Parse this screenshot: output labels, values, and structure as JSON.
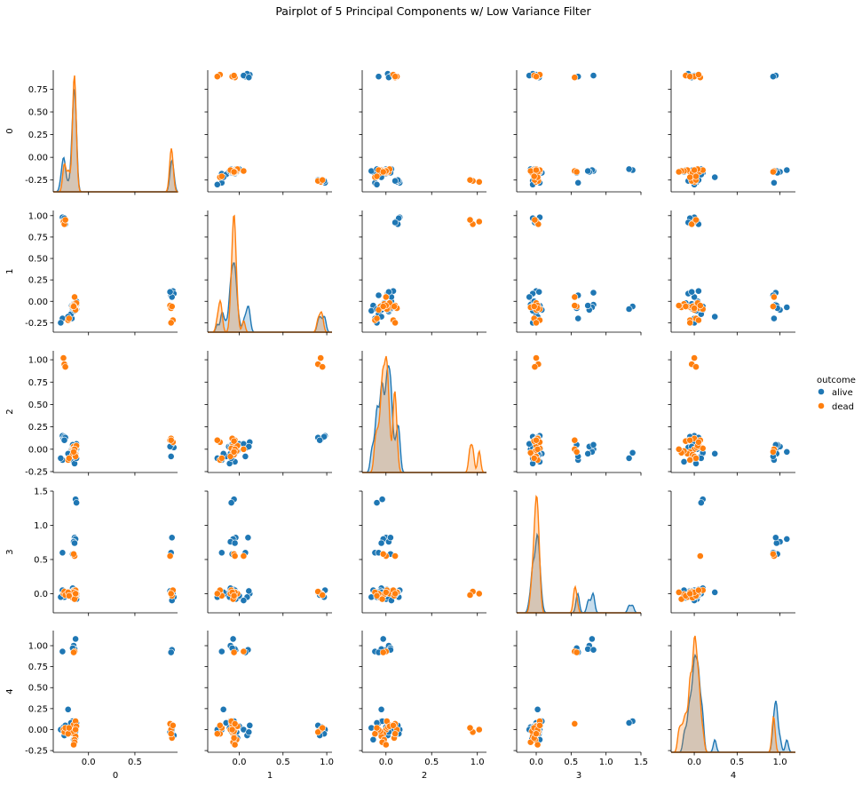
{
  "chart_data": {
    "type": "scatter",
    "title": "Pairplot of 5 Principal Components w/ Low Variance Filter",
    "variables": [
      "0",
      "1",
      "2",
      "3",
      "4"
    ],
    "diag_kind": "kde",
    "axes": [
      {
        "name": "0",
        "lim": [
          -0.38,
          0.96
        ],
        "ticks": [
          -0.25,
          0.0,
          0.25,
          0.5,
          0.75
        ],
        "tick_labels": [
          "-0.25",
          "0.00",
          "0.25",
          "0.50",
          "0.75"
        ],
        "x_tick_labels": [
          "0.0",
          "0.5"
        ],
        "x_ticks": [
          0.0,
          0.5
        ]
      },
      {
        "name": "1",
        "lim": [
          -0.36,
          1.06
        ],
        "ticks": [
          -0.25,
          0.0,
          0.25,
          0.5,
          0.75,
          1.0
        ],
        "tick_labels": [
          "-0.25",
          "0.00",
          "0.25",
          "0.50",
          "0.75",
          "1.00"
        ],
        "x_tick_labels": [
          "0.0",
          "0.5",
          "1.0"
        ],
        "x_ticks": [
          0.0,
          0.5,
          1.0
        ]
      },
      {
        "name": "2",
        "lim": [
          -0.26,
          1.1
        ],
        "ticks": [
          -0.25,
          0.0,
          0.25,
          0.5,
          0.75,
          1.0
        ],
        "tick_labels": [
          "-0.25",
          "0.00",
          "0.25",
          "0.50",
          "0.75",
          "1.00"
        ],
        "x_tick_labels": [
          "0.0",
          "0.5",
          "1.0"
        ],
        "x_ticks": [
          0.0,
          0.5,
          1.0
        ]
      },
      {
        "name": "3",
        "lim": [
          -0.28,
          1.5
        ],
        "ticks": [
          0.0,
          0.5,
          1.0,
          1.5
        ],
        "tick_labels": [
          "0.0",
          "0.5",
          "1.0",
          "1.5"
        ],
        "x_tick_labels": [
          "0.0",
          "0.5",
          "1.0",
          "1.5"
        ],
        "x_ticks": [
          0.0,
          0.5,
          1.0,
          1.5
        ]
      },
      {
        "name": "4",
        "lim": [
          -0.27,
          1.18
        ],
        "ticks": [
          -0.25,
          0.0,
          0.25,
          0.5,
          0.75,
          1.0
        ],
        "tick_labels": [
          "-0.25",
          "0.00",
          "0.25",
          "0.50",
          "0.75",
          "1.00"
        ],
        "x_tick_labels": [
          "0.0",
          "0.5",
          "1.0"
        ],
        "x_ticks": [
          0.0,
          0.5,
          1.0
        ]
      }
    ],
    "legend": {
      "title": "outcome",
      "placement": "center-right",
      "entries": [
        {
          "name": "alive",
          "color": "#1f77b4"
        },
        {
          "name": "dead",
          "color": "#ff7f0e"
        }
      ]
    },
    "series": [
      {
        "name": "alive",
        "color": "#1f77b4",
        "points": [
          [
            -0.28,
            0.98,
            0.15,
            0.05,
            0.0
          ],
          [
            -0.27,
            0.94,
            0.12,
            0.0,
            0.03
          ],
          [
            -0.26,
            0.97,
            0.14,
            -0.05,
            -0.05
          ],
          [
            -0.25,
            0.9,
            0.13,
            0.02,
            0.05
          ],
          [
            -0.26,
            0.92,
            0.1,
            -0.02,
            -0.07
          ],
          [
            -0.18,
            -0.05,
            0.0,
            0.0,
            0.0
          ],
          [
            -0.17,
            -0.08,
            0.02,
            0.03,
            0.02
          ],
          [
            -0.16,
            -0.03,
            -0.03,
            -0.02,
            -0.03
          ],
          [
            -0.15,
            -0.06,
            0.01,
            0.06,
            0.05
          ],
          [
            -0.17,
            -0.1,
            -0.05,
            0.08,
            0.1
          ],
          [
            -0.14,
            -0.02,
            -0.02,
            -0.06,
            -0.1
          ],
          [
            -0.16,
            -0.12,
            0.03,
            0.01,
            0.06
          ],
          [
            -0.15,
            -0.07,
            -0.06,
            0.04,
            -0.05
          ],
          [
            -0.18,
            -0.2,
            -0.1,
            0.02,
            0.0
          ],
          [
            -0.13,
            -0.04,
            0.0,
            -0.08,
            0.03
          ],
          [
            -0.14,
            -0.09,
            0.05,
            0.02,
            -0.02
          ],
          [
            -0.19,
            -0.15,
            -0.08,
            0.0,
            0.08
          ],
          [
            -0.13,
            0.0,
            0.06,
            -0.03,
            0.04
          ],
          [
            -0.16,
            -0.05,
            -0.14,
            0.05,
            -0.12
          ],
          [
            -0.15,
            -0.11,
            -0.16,
            -0.05,
            0.02
          ],
          [
            -0.14,
            -0.06,
            -0.04,
            1.38,
            0.1
          ],
          [
            -0.13,
            -0.09,
            -0.1,
            1.33,
            0.08
          ],
          [
            -0.15,
            -0.04,
            0.0,
            0.82,
            0.95
          ],
          [
            -0.14,
            -0.07,
            -0.03,
            0.8,
            1.08
          ],
          [
            -0.16,
            -0.1,
            0.03,
            0.76,
            1.0
          ],
          [
            -0.15,
            -0.05,
            -0.05,
            0.74,
            0.96
          ],
          [
            -0.28,
            -0.2,
            -0.12,
            0.6,
            0.93
          ],
          [
            -0.17,
            -0.08,
            0.05,
            0.58,
            0.97
          ],
          [
            0.9,
            0.1,
            0.05,
            0.82,
            0.95
          ],
          [
            0.89,
            0.07,
            -0.08,
            0.6,
            0.92
          ],
          [
            0.91,
            0.12,
            0.08,
            0.0,
            0.05
          ],
          [
            0.92,
            0.09,
            0.02,
            -0.05,
            -0.07
          ],
          [
            0.9,
            0.05,
            0.06,
            -0.1,
            0.0
          ],
          [
            0.88,
            0.11,
            0.03,
            0.04,
            -0.03
          ],
          [
            -0.3,
            -0.25,
            -0.1,
            -0.05,
            0.0
          ],
          [
            -0.22,
            -0.18,
            -0.05,
            0.02,
            0.24
          ]
        ]
      },
      {
        "name": "dead",
        "color": "#ff7f0e",
        "points": [
          [
            -0.27,
            0.93,
            1.02,
            0.0,
            0.0
          ],
          [
            -0.26,
            0.9,
            0.95,
            0.03,
            -0.03
          ],
          [
            -0.25,
            0.95,
            0.92,
            -0.02,
            0.02
          ],
          [
            -0.17,
            -0.05,
            0.0,
            0.0,
            0.0
          ],
          [
            -0.16,
            -0.07,
            -0.03,
            -0.03,
            -0.05
          ],
          [
            -0.15,
            -0.04,
            0.02,
            0.02,
            0.03
          ],
          [
            -0.14,
            -0.06,
            -0.05,
            -0.05,
            -0.08
          ],
          [
            -0.16,
            -0.08,
            0.03,
            0.04,
            0.06
          ],
          [
            -0.15,
            -0.03,
            -0.02,
            -0.01,
            -0.12
          ],
          [
            -0.14,
            -0.09,
            0.01,
            0.05,
            0.1
          ],
          [
            -0.17,
            -0.06,
            -0.06,
            -0.06,
            -0.02
          ],
          [
            -0.13,
            -0.02,
            0.04,
            0.0,
            0.04
          ],
          [
            -0.15,
            -0.07,
            -0.04,
            -0.08,
            -0.15
          ],
          [
            -0.16,
            -0.05,
            0.0,
            0.02,
            -0.18
          ],
          [
            -0.14,
            -0.1,
            -0.08,
            0.0,
            0.0
          ],
          [
            -0.15,
            0.05,
            0.0,
            0.55,
            0.93
          ],
          [
            -0.16,
            -0.06,
            -0.03,
            0.58,
            0.92
          ],
          [
            -0.22,
            -0.22,
            -0.12,
            0.02,
            -0.05
          ],
          [
            -0.21,
            -0.2,
            -0.1,
            -0.03,
            0.02
          ],
          [
            0.88,
            -0.05,
            0.1,
            0.55,
            0.07
          ],
          [
            0.89,
            -0.08,
            0.12,
            0.02,
            0.0
          ],
          [
            0.9,
            -0.06,
            0.09,
            -0.03,
            -0.1
          ],
          [
            0.91,
            -0.22,
            0.08,
            0.05,
            0.05
          ],
          [
            0.89,
            -0.25,
            0.1,
            0.0,
            -0.05
          ]
        ]
      }
    ]
  }
}
